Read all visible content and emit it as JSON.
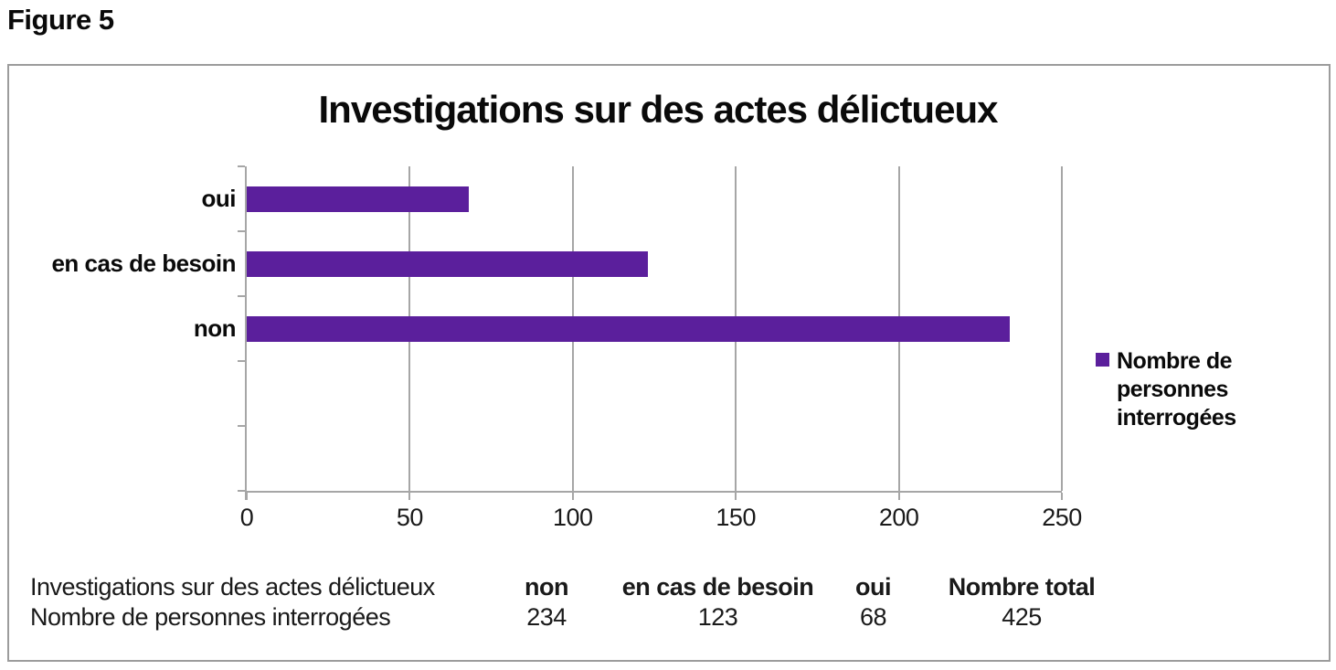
{
  "figure_label": "Figure 5",
  "chart_data": {
    "type": "bar",
    "orientation": "horizontal",
    "title": "Investigations sur des actes délictueux",
    "categories": [
      "oui",
      "en cas de besoin",
      "non"
    ],
    "values": [
      68,
      123,
      234
    ],
    "series_name": "Nombre de personnes interrogées",
    "xlabel": "",
    "ylabel": "",
    "xlim": [
      0,
      250
    ],
    "xticks": [
      0,
      50,
      100,
      150,
      200,
      250
    ],
    "slot_count": 5,
    "grid": true,
    "legend_position": "right",
    "bar_color": "#5B1F9C",
    "axis_color": "#a6a6a6"
  },
  "legend": {
    "label": "Nombre de personnes interrogées",
    "swatch_color": "#5B1F9C"
  },
  "table": {
    "rows": [
      {
        "label": "Investigations sur des actes délictueux",
        "cells": [
          "non",
          "en cas de besoin",
          "oui",
          "Nombre total"
        ]
      },
      {
        "label": "Nombre de personnes interrogées",
        "cells": [
          "234",
          "123",
          "68",
          "425"
        ]
      }
    ]
  }
}
